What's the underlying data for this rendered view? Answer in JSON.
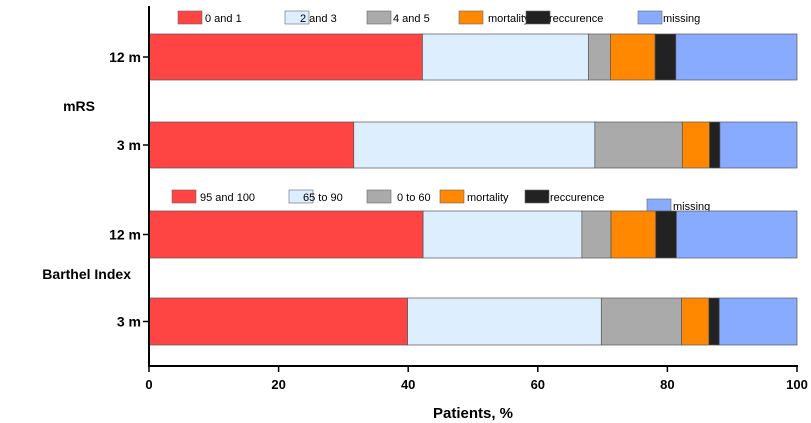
{
  "chart_data": {
    "type": "bar",
    "orientation": "horizontal",
    "stacked": true,
    "xlabel": "Patients, %",
    "xlim": [
      0,
      100
    ],
    "xticks": [
      "0",
      "20",
      "40",
      "60",
      "80",
      "100"
    ],
    "grid": false,
    "groups": [
      {
        "label": "mRS",
        "legend": [
          {
            "name": "0 and 1",
            "color": "#ff4444"
          },
          {
            "name": "2 and 3",
            "color": "#ddeeff"
          },
          {
            "name": "4 and 5",
            "color": "#aaaaaa"
          },
          {
            "name": "mortality",
            "color": "#ff8800"
          },
          {
            "name": "reccurence",
            "color": "#222222"
          },
          {
            "name": "missing",
            "color": "#88aaff"
          }
        ],
        "bars": [
          {
            "category": "12 m",
            "values": [
              42.2,
              25.6,
              3.4,
              6.9,
              3.2,
              18.7
            ]
          },
          {
            "category": "3 m",
            "values": [
              31.6,
              37.2,
              13.5,
              4.2,
              1.6,
              11.9
            ]
          }
        ]
      },
      {
        "label": "Barthel Index",
        "legend": [
          {
            "name": "95 and 100",
            "color": "#ff4444"
          },
          {
            "name": "65 to 90",
            "color": "#ddeeff"
          },
          {
            "name": "0 to 60",
            "color": "#aaaaaa"
          },
          {
            "name": "mortality",
            "color": "#ff8800"
          },
          {
            "name": "reccurence",
            "color": "#222222"
          },
          {
            "name": "missing",
            "color": "#88aaff"
          }
        ],
        "bars": [
          {
            "category": "12 m",
            "values": [
              42.3,
              24.5,
              4.5,
              6.9,
              3.2,
              18.6
            ]
          },
          {
            "category": "3 m",
            "values": [
              39.9,
              29.9,
              12.4,
              4.2,
              1.6,
              12.0
            ]
          }
        ]
      }
    ]
  }
}
